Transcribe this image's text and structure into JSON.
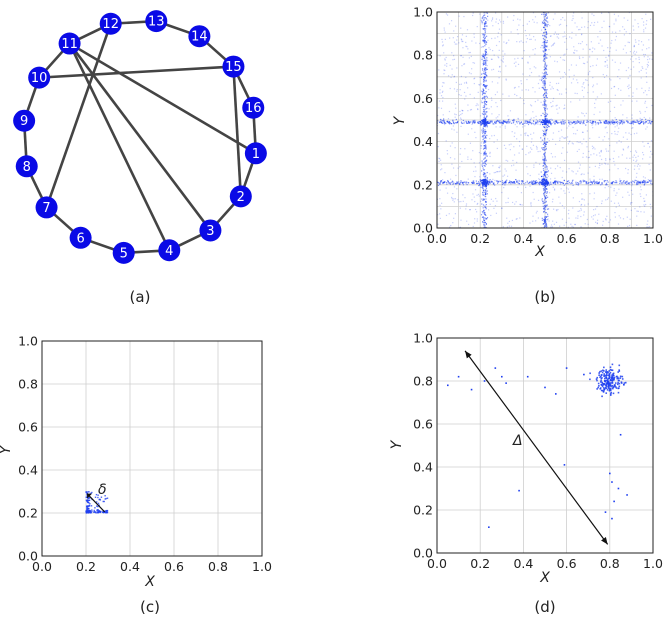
{
  "colors": {
    "node": "#0a0ae6",
    "edge": "#444444",
    "point": "#1f3ff0",
    "grid": "#cfcfcf"
  },
  "captions": {
    "a": "(a)",
    "b": "(b)",
    "c": "(c)",
    "d": "(d)"
  },
  "graph": {
    "nodes": [
      "1",
      "2",
      "3",
      "4",
      "5",
      "6",
      "7",
      "8",
      "9",
      "10",
      "11",
      "12",
      "13",
      "14",
      "15",
      "16"
    ],
    "edges": [
      [
        "1",
        "16"
      ],
      [
        "16",
        "15"
      ],
      [
        "15",
        "14"
      ],
      [
        "14",
        "13"
      ],
      [
        "13",
        "12"
      ],
      [
        "12",
        "11"
      ],
      [
        "11",
        "10"
      ],
      [
        "10",
        "9"
      ],
      [
        "9",
        "8"
      ],
      [
        "8",
        "7"
      ],
      [
        "7",
        "6"
      ],
      [
        "6",
        "5"
      ],
      [
        "5",
        "4"
      ],
      [
        "4",
        "3"
      ],
      [
        "3",
        "2"
      ],
      [
        "2",
        "1"
      ],
      [
        "11",
        "1"
      ],
      [
        "11",
        "3"
      ],
      [
        "11",
        "4"
      ],
      [
        "10",
        "15"
      ],
      [
        "12",
        "7"
      ],
      [
        "15",
        "2"
      ]
    ]
  },
  "chart_data": [
    {
      "panel": "b",
      "type": "scatter",
      "xlabel": "X",
      "ylabel": "Y",
      "xlim": [
        0.0,
        1.0
      ],
      "ylim": [
        0.0,
        1.0
      ],
      "xticks": [
        "0.0",
        "0.2",
        "0.4",
        "0.6",
        "0.8",
        "1.0"
      ],
      "yticks": [
        "0.0",
        "0.2",
        "0.4",
        "0.6",
        "0.8",
        "1.0"
      ],
      "grid": true,
      "concentration_lines_x": [
        0.22,
        0.5
      ],
      "concentration_lines_y": [
        0.21,
        0.49
      ]
    },
    {
      "panel": "c",
      "type": "scatter",
      "xlabel": "X",
      "ylabel": "Y",
      "xlim": [
        0.0,
        1.0
      ],
      "ylim": [
        0.0,
        1.0
      ],
      "xticks": [
        "0.0",
        "0.2",
        "0.4",
        "0.6",
        "0.8",
        "1.0"
      ],
      "yticks": [
        "0.0",
        "0.2",
        "0.4",
        "0.6",
        "0.8",
        "1.0"
      ],
      "grid": true,
      "cluster_region": {
        "x": [
          0.2,
          0.3
        ],
        "y": [
          0.2,
          0.3
        ]
      },
      "annotation": "δ"
    },
    {
      "panel": "d",
      "type": "scatter",
      "xlabel": "X",
      "ylabel": "Y",
      "xlim": [
        0.0,
        1.0
      ],
      "ylim": [
        0.0,
        1.0
      ],
      "xticks": [
        "0.0",
        "0.2",
        "0.4",
        "0.6",
        "0.8",
        "1.0"
      ],
      "yticks": [
        "0.0",
        "0.2",
        "0.4",
        "0.6",
        "0.8",
        "1.0"
      ],
      "grid": true,
      "cluster_center": [
        0.8,
        0.8
      ],
      "sparse_points": [
        [
          0.05,
          0.78
        ],
        [
          0.1,
          0.82
        ],
        [
          0.16,
          0.76
        ],
        [
          0.22,
          0.8
        ],
        [
          0.27,
          0.86
        ],
        [
          0.3,
          0.82
        ],
        [
          0.32,
          0.79
        ],
        [
          0.42,
          0.82
        ],
        [
          0.5,
          0.77
        ],
        [
          0.55,
          0.74
        ],
        [
          0.6,
          0.86
        ],
        [
          0.68,
          0.83
        ],
        [
          0.59,
          0.41
        ],
        [
          0.38,
          0.29
        ],
        [
          0.24,
          0.12
        ],
        [
          0.8,
          0.37
        ],
        [
          0.81,
          0.33
        ],
        [
          0.84,
          0.3
        ],
        [
          0.82,
          0.24
        ],
        [
          0.88,
          0.27
        ],
        [
          0.78,
          0.19
        ],
        [
          0.81,
          0.16
        ],
        [
          0.85,
          0.55
        ]
      ],
      "arrow": {
        "from": [
          0.13,
          0.94
        ],
        "to": [
          0.79,
          0.04
        ]
      },
      "annotation": "Δ"
    }
  ]
}
